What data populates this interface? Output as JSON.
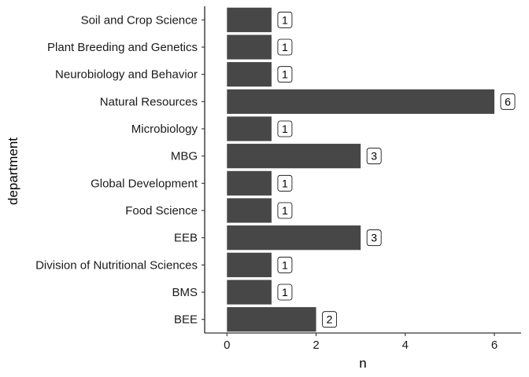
{
  "chart_data": {
    "type": "bar",
    "orientation": "horizontal",
    "categories": [
      "Soil and Crop Science",
      "Plant Breeding and Genetics",
      "Neurobiology and Behavior",
      "Natural Resources",
      "Microbiology",
      "MBG",
      "Global Development",
      "Food Science",
      "EEB",
      "Division of Nutritional Sciences",
      "BMS",
      "BEE"
    ],
    "values": [
      1,
      1,
      1,
      6,
      1,
      3,
      1,
      1,
      3,
      1,
      1,
      2
    ],
    "data_labels": [
      "1",
      "1",
      "1",
      "6",
      "1",
      "3",
      "1",
      "1",
      "3",
      "1",
      "1",
      "2"
    ],
    "xlabel": "n",
    "ylabel": "department",
    "xlim": [
      -0.5,
      6.6
    ],
    "xticks": [
      0,
      2,
      4,
      6
    ],
    "xtick_labels": [
      "0",
      "2",
      "4",
      "6"
    ],
    "grid": false,
    "colors": {
      "bar": "#474747",
      "axis": "#000000",
      "label_box": "#ffffff"
    }
  }
}
